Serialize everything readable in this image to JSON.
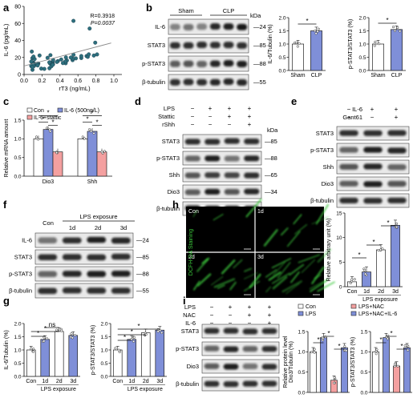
{
  "panels": [
    "a",
    "b",
    "c",
    "d",
    "e",
    "f",
    "g",
    "h",
    "i"
  ],
  "a": {
    "xlabel": "rT3 (ng/mL)",
    "ylabel": "IL-6 (pg/mL)",
    "xticks": [
      "0.0",
      "0.2",
      "0.4",
      "0.6",
      "0.8",
      "1.0"
    ],
    "yticks": [
      "0",
      "20",
      "40",
      "60",
      "80"
    ],
    "r_text": "R=0.3918",
    "p_text": "P=0.0037"
  },
  "b": {
    "groups": [
      "Sham",
      "CLP"
    ],
    "kda_label": "kDa",
    "blots": [
      {
        "label": "IL-6",
        "kda": "24"
      },
      {
        "label": "STAT3",
        "kda": "85"
      },
      {
        "label": "p-STAT3",
        "kda": "88"
      },
      {
        "label": "β-tubulin",
        "kda": "55"
      }
    ],
    "bar1": {
      "ylabel": "IL-6/Tubulin (%)",
      "categories": [
        "Sham",
        "CLP"
      ],
      "values": [
        1.0,
        1.5
      ],
      "yticks": [
        "0.0",
        "0.5",
        "1.0",
        "1.5",
        "2.0"
      ],
      "sig": "*"
    },
    "bar2": {
      "ylabel": "p-STAT3/STAT3 (%)",
      "categories": [
        "Sham",
        "CLP"
      ],
      "values": [
        1.0,
        1.55
      ],
      "yticks": [
        "0.0",
        "0.5",
        "1.0",
        "1.5",
        "2.0"
      ],
      "sig": "*"
    }
  },
  "c": {
    "ylabel": "Relative mRNA amount",
    "legend": [
      "Con",
      "IL-6 (500ng/L)",
      "IL-6+stattic"
    ],
    "categories": [
      "Dio3",
      "Shh"
    ],
    "yticks": [
      "0.0",
      "0.5",
      "1.0",
      "1.5"
    ],
    "series": [
      {
        "name": "Con",
        "values": [
          1.0,
          1.0
        ]
      },
      {
        "name": "IL-6 (500ng/L)",
        "values": [
          1.25,
          1.2
        ]
      },
      {
        "name": "IL-6+stattic",
        "values": [
          0.65,
          0.65
        ]
      }
    ],
    "sig": "*"
  },
  "d": {
    "conds": [
      {
        "label": "LPS",
        "marks": [
          "−",
          "+",
          "+",
          "+"
        ]
      },
      {
        "label": "Stattic",
        "marks": [
          "−",
          "−",
          "+",
          "+"
        ]
      },
      {
        "label": "rShh",
        "marks": [
          "−",
          "−",
          "−",
          "+"
        ]
      }
    ],
    "kda_label": "kDa",
    "blots": [
      {
        "label": "STAT3",
        "kda": "85"
      },
      {
        "label": "p-STAT3",
        "kda": "88"
      },
      {
        "label": "Shh",
        "kda": "65"
      },
      {
        "label": "Dio3",
        "kda": "34"
      },
      {
        "label": "β-tubulin",
        "kda": "55"
      }
    ]
  },
  "e": {
    "conds": [
      {
        "label": "IL-6",
        "marks": [
          "−",
          "+",
          "+"
        ]
      },
      {
        "label": "Gant61",
        "marks": [
          "−",
          "−",
          "+"
        ]
      }
    ],
    "blots": [
      "STAT3",
      "p-STAT3",
      "Shh",
      "Dio3",
      "β-tubulin"
    ]
  },
  "f": {
    "con": "Con",
    "exposure": "LPS exposure",
    "days": [
      "1d",
      "2d",
      "3d"
    ],
    "blots": [
      {
        "label": "IL-6",
        "kda": "24"
      },
      {
        "label": "STAT3",
        "kda": "85"
      },
      {
        "label": "p-STAT3",
        "kda": "88"
      },
      {
        "label": "β-tubulin",
        "kda": "55"
      }
    ]
  },
  "g": {
    "bar1": {
      "ylabel": "IL-6/Tubulin (%)",
      "categories": [
        "Con",
        "1d",
        "2d",
        "3d"
      ],
      "values": [
        1.0,
        1.4,
        1.7,
        1.55
      ],
      "yticks": [
        "0.0",
        "0.5",
        "1.0",
        "1.5",
        "2.0"
      ],
      "xlabel": "LPS exposure",
      "ns": "ns",
      "sig": "*"
    },
    "bar2": {
      "ylabel": "p-STAT3/STAT3 (%)",
      "categories": [
        "Con",
        "1d",
        "2d",
        "3d"
      ],
      "values": [
        1.0,
        1.4,
        1.65,
        1.75
      ],
      "yticks": [
        "0.0",
        "0.5",
        "1.0",
        "1.5",
        "2.0"
      ],
      "xlabel": "LPS exposure",
      "sig": "*"
    }
  },
  "h": {
    "stain_label": "DCFH-DA Staining",
    "quads": [
      "Con",
      "1d",
      "2d",
      "3d"
    ],
    "bar": {
      "ylabel": "Relative arbitrary unit (%)",
      "categories": [
        "Con",
        "1d",
        "2d",
        "3d"
      ],
      "values": [
        1.0,
        3.0,
        7.5,
        12.5
      ],
      "yticks": [
        "0",
        "5",
        "10",
        "15"
      ],
      "xlabel": "LPS exposure",
      "sig": "*"
    }
  },
  "i": {
    "conds": [
      {
        "label": "LPS",
        "marks": [
          "−",
          "+",
          "+",
          "+"
        ]
      },
      {
        "label": "NAC",
        "marks": [
          "−",
          "−",
          "+",
          "+"
        ]
      },
      {
        "label": "IL-6",
        "marks": [
          "−",
          "−",
          "−",
          "+"
        ]
      }
    ],
    "blots": [
      "STAT3",
      "p-STAT3",
      "Dio3",
      "β-tubulin"
    ],
    "legend1": [
      "Con",
      "LPS"
    ],
    "legend2": [
      "LPS+NAC",
      "LPS+NAC+IL-6"
    ],
    "bar1": {
      "ylabel": "Relative protein level Dio3/Tubulin (%)",
      "values": [
        1.0,
        1.35,
        0.3,
        1.1
      ],
      "yticks": [
        "0.0",
        "0.5",
        "1.0",
        "1.5"
      ],
      "sig": "*"
    },
    "bar2": {
      "ylabel": "p-STAT3/STAT3 (%)",
      "values": [
        1.0,
        1.35,
        0.65,
        1.1
      ],
      "yticks": [
        "0.0",
        "0.5",
        "1.0",
        "1.5"
      ],
      "sig": "*"
    }
  },
  "colors": {
    "con": "#ffffff",
    "il6": "#7f8fd8",
    "stattic": "#f4a0a0",
    "scatter": "#2d6f7d",
    "green": "#3cc83c"
  }
}
